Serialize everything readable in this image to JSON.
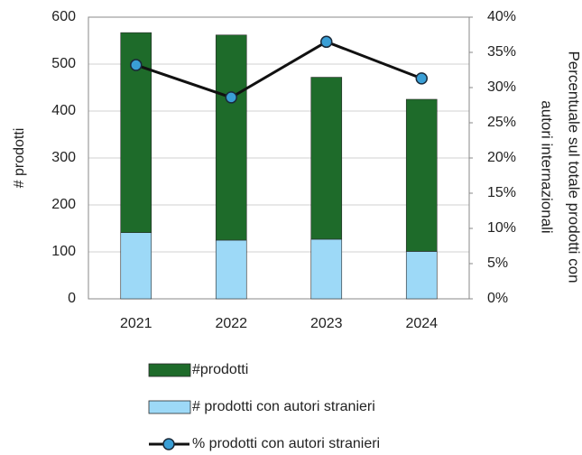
{
  "chart_data": {
    "type": "bar",
    "stacked": true,
    "categories": [
      "2021",
      "2022",
      "2023",
      "2024"
    ],
    "ylabel": "# prodotti",
    "y2label": [
      "Percentuale sul totale prodotti con",
      "autori internazionali"
    ],
    "ylim": [
      0,
      600
    ],
    "yticks": [
      0,
      100,
      200,
      300,
      400,
      500,
      600
    ],
    "y2lim": [
      0,
      40
    ],
    "y2ticks": [
      {
        "value": 0,
        "label": "0%"
      },
      {
        "value": 5,
        "label": "5%"
      },
      {
        "value": 10,
        "label": "10%"
      },
      {
        "value": 15,
        "label": "15%"
      },
      {
        "value": 20,
        "label": "20%"
      },
      {
        "value": 25,
        "label": "25%"
      },
      {
        "value": 30,
        "label": "30%"
      },
      {
        "value": 35,
        "label": "35%"
      },
      {
        "value": 40,
        "label": "40%"
      }
    ],
    "grid": true,
    "legend": "bottom",
    "series": [
      {
        "name": "# prodotti con autori stranieri",
        "color": "#9dd9f7",
        "values": [
          141,
          125,
          127,
          101
        ]
      },
      {
        "name": "#prodotti",
        "color": "#1e6b2a",
        "values": [
          426,
          437,
          345,
          324
        ]
      },
      {
        "name": "% prodotti con autori stranieri",
        "type": "line",
        "axis": "y2",
        "color": "#111111",
        "marker_color": "#3a9fd6",
        "values": [
          33.2,
          28.6,
          36.5,
          31.3
        ]
      }
    ]
  }
}
